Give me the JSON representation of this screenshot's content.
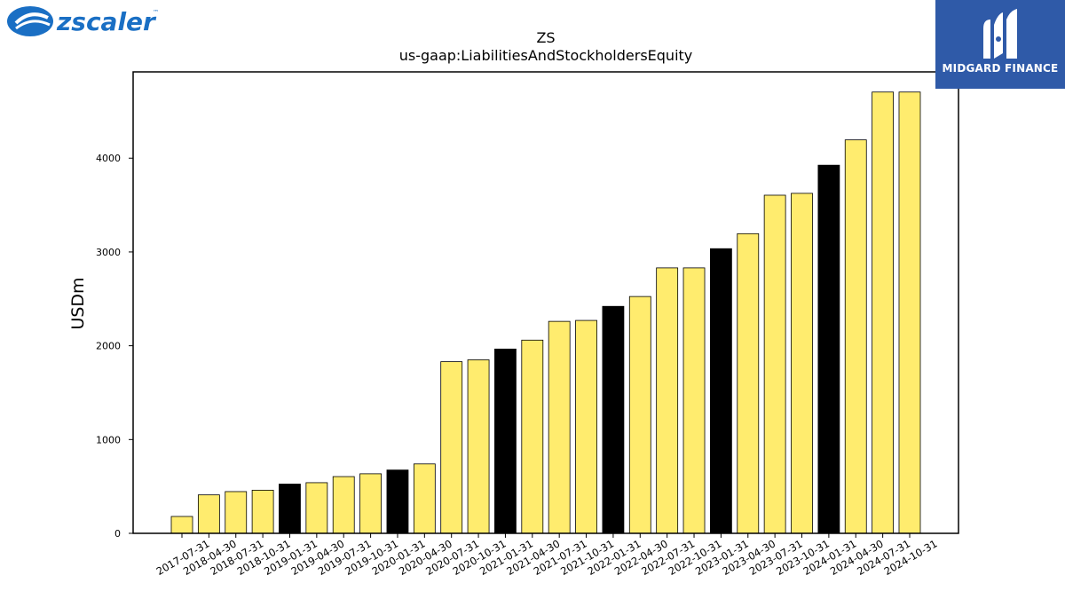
{
  "logos": {
    "left": {
      "text": "zscaler",
      "trademark": "™",
      "color": "#1a6fc4"
    },
    "right": {
      "text": "MIDGARD FINANCE",
      "background": "#2f5aa8"
    }
  },
  "chart_data": {
    "type": "bar",
    "title": "ZS",
    "subtitle": "us-gaap:LiabilitiesAndStockholdersEquity",
    "ylabel": "USDm",
    "xlabel": "",
    "ylim": [
      0,
      4920
    ],
    "yticks": [
      0,
      1000,
      2000,
      3000,
      4000
    ],
    "grid": false,
    "colors": {
      "default": "#ffec6e",
      "highlight": "#000000",
      "edge": "#000000"
    },
    "categories": [
      "2017-07-31",
      "2018-04-30",
      "2018-07-31",
      "2018-10-31",
      "2019-01-31",
      "2019-04-30",
      "2019-07-31",
      "2019-10-31",
      "2020-01-31",
      "2020-04-30",
      "2020-07-31",
      "2020-10-31",
      "2021-01-31",
      "2021-04-30",
      "2021-07-31",
      "2021-10-31",
      "2022-01-31",
      "2022-04-30",
      "2022-07-31",
      "2022-10-31",
      "2023-01-31",
      "2023-04-30",
      "2023-07-31",
      "2023-10-31",
      "2024-01-31",
      "2024-04-30",
      "2024-07-31",
      "2024-10-31"
    ],
    "values": [
      180,
      410,
      445,
      460,
      525,
      540,
      605,
      635,
      675,
      740,
      1830,
      1850,
      1965,
      2060,
      2260,
      2270,
      2420,
      2525,
      2830,
      2830,
      3035,
      3195,
      3605,
      3625,
      3925,
      4195,
      4705,
      4705
    ],
    "highlighted": [
      "2019-01-31",
      "2020-01-31",
      "2021-01-31",
      "2022-01-31",
      "2023-01-31",
      "2024-01-31"
    ]
  }
}
